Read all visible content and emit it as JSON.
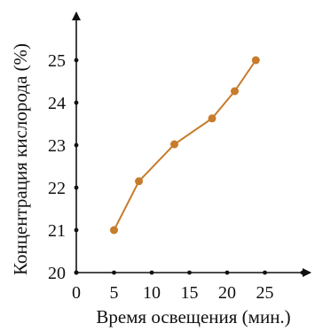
{
  "chart_data": {
    "type": "line",
    "title": "",
    "xlabel": "Время освещения (мин.)",
    "ylabel": "Концентрация кислорода (%)",
    "xlim": [
      0,
      30
    ],
    "ylim": [
      20,
      25.5
    ],
    "xticks": [
      0,
      5,
      10,
      15,
      20,
      25
    ],
    "yticks": [
      20,
      21,
      22,
      23,
      24,
      25
    ],
    "grid": false,
    "legend": "none",
    "series": [
      {
        "color": "#c77b2b",
        "x": [
          5,
          8.3,
          13,
          18,
          21,
          23.8
        ],
        "y": [
          21,
          22.15,
          23.02,
          23.63,
          24.27,
          25
        ]
      }
    ]
  }
}
